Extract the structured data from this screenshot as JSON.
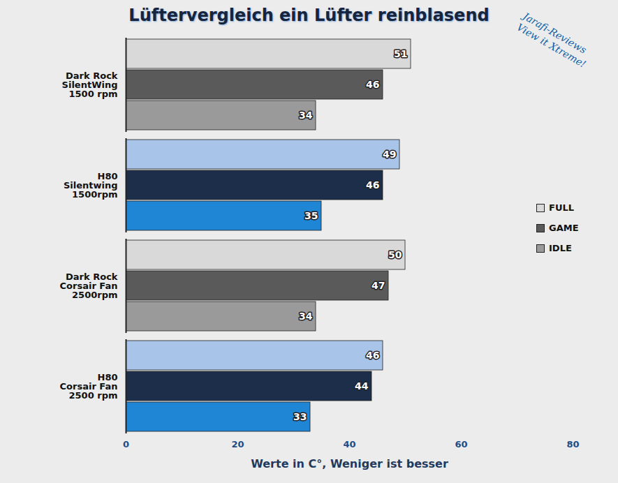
{
  "chart_data": {
    "type": "bar",
    "orientation": "horizontal",
    "title": "Lüftervergleich ein Lüfter reinblasend",
    "x_label": "Werte in C°, Weniger ist besser",
    "annotations": [
      "Jarafi-Reviews",
      "View it Xtreme!"
    ],
    "categories": [
      "Dark Rock\nSilentWing\n1500 rpm",
      "H80\nSilentwing\n1500rpm",
      "Dark Rock\nCorsair Fan\n2500rpm",
      "H80\nCorsair Fan\n2500 rpm"
    ],
    "series": [
      {
        "name": "FULL",
        "color": "#d9d9d9",
        "colors": [
          "#d9d9d9",
          "#a8c4e8",
          "#d9d9d9",
          "#a8c4e8"
        ],
        "values": [
          51,
          49,
          50,
          46
        ]
      },
      {
        "name": "GAME",
        "color": "#5a5a5a",
        "colors": [
          "#5a5a5a",
          "#1c2e4a",
          "#5a5a5a",
          "#1c2e4a"
        ],
        "values": [
          46,
          46,
          47,
          44
        ]
      },
      {
        "name": "IDLE",
        "color": "#9a9a9a",
        "colors": [
          "#9a9a9a",
          "#1f86d6",
          "#9a9a9a",
          "#1f86d6"
        ],
        "values": [
          34,
          35,
          34,
          33
        ]
      }
    ],
    "xlim": [
      0,
      80
    ],
    "xticks": [
      0,
      20,
      40,
      60,
      80
    ],
    "grid": false,
    "data_labels": true,
    "legend": "right"
  }
}
